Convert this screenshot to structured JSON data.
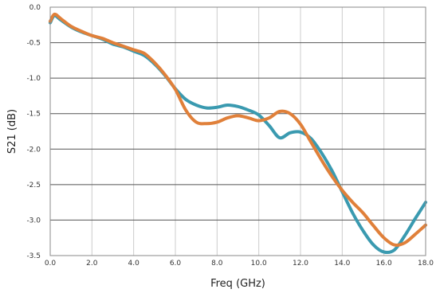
{
  "chart_data": {
    "type": "line",
    "title": "",
    "xlabel": "Freq (GHz)",
    "ylabel": "S21 (dB)",
    "xlim": [
      0,
      18
    ],
    "ylim": [
      -3.5,
      0
    ],
    "grid": true,
    "x_ticks": [
      0,
      2,
      4,
      6,
      8,
      10,
      12,
      14,
      16,
      18
    ],
    "x_tick_labels": [
      "0.0",
      "2.0",
      "4.0",
      "6.0",
      "8.0",
      "10.0",
      "12.0",
      "14.0",
      "16.0",
      "18.0"
    ],
    "y_ticks": [
      0,
      -0.5,
      -1,
      -1.5,
      -2,
      -2.5,
      -3,
      -3.5
    ],
    "y_tick_labels": [
      "0.0",
      "-0.5",
      "-1.0",
      "-1.5",
      "-2.0",
      "-2.5",
      "-3.0",
      "-3.5"
    ],
    "series": [
      {
        "color": "#3a9ab0",
        "points": [
          [
            0,
            -0.22
          ],
          [
            0.2,
            -0.12
          ],
          [
            0.5,
            -0.18
          ],
          [
            1,
            -0.28
          ],
          [
            1.5,
            -0.35
          ],
          [
            2,
            -0.4
          ],
          [
            2.5,
            -0.45
          ],
          [
            3,
            -0.52
          ],
          [
            3.5,
            -0.56
          ],
          [
            4,
            -0.62
          ],
          [
            4.5,
            -0.68
          ],
          [
            5,
            -0.8
          ],
          [
            5.5,
            -0.96
          ],
          [
            6,
            -1.15
          ],
          [
            6.5,
            -1.3
          ],
          [
            7,
            -1.38
          ],
          [
            7.5,
            -1.42
          ],
          [
            8,
            -1.41
          ],
          [
            8.5,
            -1.38
          ],
          [
            9,
            -1.4
          ],
          [
            9.5,
            -1.45
          ],
          [
            10,
            -1.52
          ],
          [
            10.5,
            -1.67
          ],
          [
            11,
            -1.84
          ],
          [
            11.5,
            -1.77
          ],
          [
            12,
            -1.76
          ],
          [
            12.5,
            -1.85
          ],
          [
            13,
            -2.05
          ],
          [
            13.5,
            -2.3
          ],
          [
            14,
            -2.6
          ],
          [
            14.5,
            -2.9
          ],
          [
            15,
            -3.15
          ],
          [
            15.5,
            -3.35
          ],
          [
            16,
            -3.45
          ],
          [
            16.5,
            -3.42
          ],
          [
            17,
            -3.22
          ],
          [
            17.5,
            -2.98
          ],
          [
            18,
            -2.75
          ]
        ]
      },
      {
        "color": "#e0803a",
        "points": [
          [
            0,
            -0.2
          ],
          [
            0.2,
            -0.1
          ],
          [
            0.5,
            -0.16
          ],
          [
            1,
            -0.27
          ],
          [
            1.5,
            -0.34
          ],
          [
            2,
            -0.4
          ],
          [
            2.5,
            -0.44
          ],
          [
            3,
            -0.5
          ],
          [
            3.5,
            -0.55
          ],
          [
            4,
            -0.6
          ],
          [
            4.5,
            -0.65
          ],
          [
            5,
            -0.78
          ],
          [
            5.5,
            -0.95
          ],
          [
            6,
            -1.16
          ],
          [
            6.5,
            -1.45
          ],
          [
            7,
            -1.62
          ],
          [
            7.5,
            -1.64
          ],
          [
            8,
            -1.62
          ],
          [
            8.5,
            -1.56
          ],
          [
            9,
            -1.53
          ],
          [
            9.5,
            -1.56
          ],
          [
            10,
            -1.6
          ],
          [
            10.5,
            -1.56
          ],
          [
            11,
            -1.47
          ],
          [
            11.5,
            -1.5
          ],
          [
            12,
            -1.65
          ],
          [
            12.5,
            -1.9
          ],
          [
            13,
            -2.15
          ],
          [
            13.5,
            -2.38
          ],
          [
            14,
            -2.58
          ],
          [
            14.5,
            -2.75
          ],
          [
            15,
            -2.9
          ],
          [
            15.5,
            -3.08
          ],
          [
            16,
            -3.25
          ],
          [
            16.5,
            -3.35
          ],
          [
            17,
            -3.32
          ],
          [
            17.5,
            -3.2
          ],
          [
            18,
            -3.07
          ]
        ]
      }
    ]
  }
}
